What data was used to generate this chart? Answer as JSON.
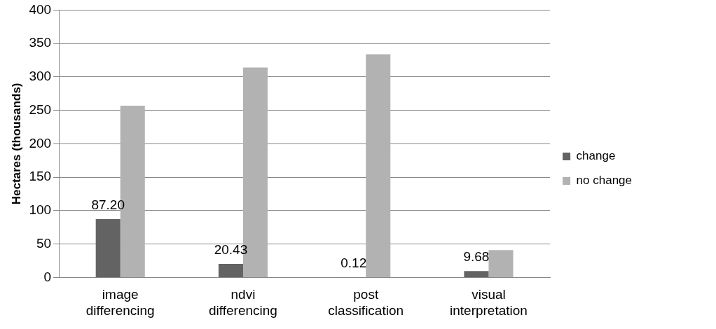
{
  "chart_data": {
    "type": "bar",
    "ylabel": "Hectares (thousands)",
    "categories": [
      [
        "image",
        "differencing"
      ],
      [
        "ndvi",
        "differencing"
      ],
      [
        "post",
        "classification"
      ],
      [
        "visual",
        "interpretation"
      ]
    ],
    "series": [
      {
        "name": "change",
        "color": "#636363",
        "values": [
          87.2,
          20.43,
          0.12,
          9.68
        ],
        "value_labels": [
          "87.20",
          "20.43",
          "0.12",
          "9.68"
        ]
      },
      {
        "name": "no change",
        "color": "#b2b2b2",
        "values": [
          257,
          314,
          334,
          41
        ]
      }
    ],
    "ylim": [
      0,
      400
    ],
    "yticks": [
      0,
      50,
      100,
      150,
      200,
      250,
      300,
      350,
      400
    ],
    "grid": "y",
    "legend": "right"
  }
}
